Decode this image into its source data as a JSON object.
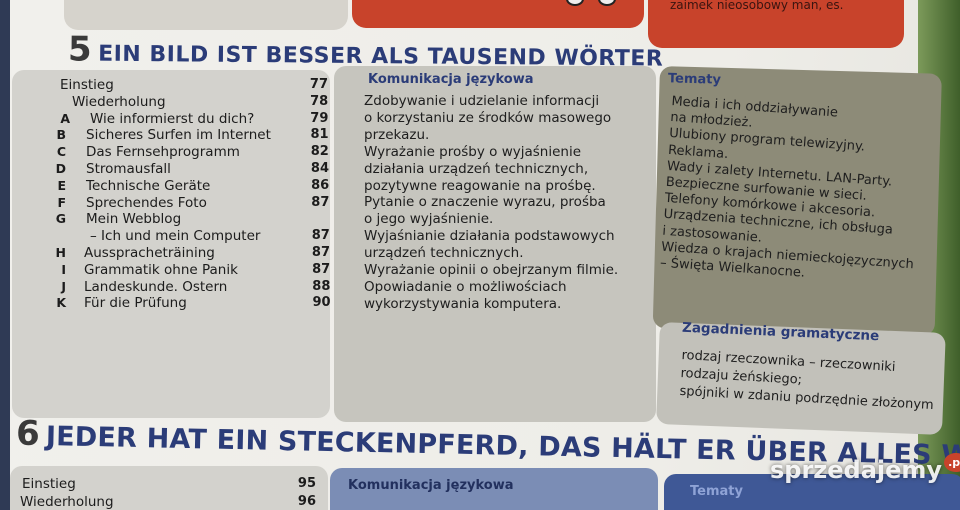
{
  "prev_unit": {
    "note": "zaimek nieosobowy man, es."
  },
  "unit5": {
    "number": "5",
    "title": "EIN BILD IST BESSER ALS TAUSEND WÖRTER",
    "toc": [
      {
        "letter": "",
        "text": "Einstieg",
        "page": "77"
      },
      {
        "letter": "",
        "text": "Wiederholung",
        "page": "78"
      },
      {
        "letter": "A",
        "text": "Wie informierst du dich?",
        "page": "79"
      },
      {
        "letter": "B",
        "text": "Sicheres Surfen im Internet",
        "page": "81"
      },
      {
        "letter": "C",
        "text": "Das Fernsehprogramm",
        "page": "82"
      },
      {
        "letter": "D",
        "text": "Stromausfall",
        "page": "84"
      },
      {
        "letter": "E",
        "text": "Technische Geräte",
        "page": "86"
      },
      {
        "letter": "F",
        "text": "Sprechendes Foto",
        "page": "87"
      },
      {
        "letter": "G",
        "text": "Mein Webblog",
        "page": ""
      },
      {
        "letter": "",
        "text": "– Ich und mein Computer",
        "page": "87"
      },
      {
        "letter": "H",
        "text": "Ausspracheträining",
        "page": "87"
      },
      {
        "letter": "I",
        "text": "Grammatik ohne Panik",
        "page": "87"
      },
      {
        "letter": "J",
        "text": "Landeskunde. Ostern",
        "page": "88"
      },
      {
        "letter": "K",
        "text": "Für die Prüfung",
        "page": "90"
      }
    ],
    "komunikacja": {
      "title": "Komunikacja językowa",
      "lines": [
        "Zdobywanie i udzielanie informacji",
        "o korzystaniu ze środków masowego",
        "przekazu.",
        "Wyrażanie prośby o wyjaśnienie",
        "działania urządzeń technicznych,",
        "pozytywne reagowanie na prośbę.",
        "Pytanie o znaczenie wyrazu, prośba",
        "o jego wyjaśnienie.",
        "Wyjaśnianie działania podstawowych",
        "urządzeń technicznych.",
        "Wyrażanie opinii o obejrzanym filmie.",
        "Opowiadanie o możliwościach",
        "wykorzystywania komputera."
      ]
    },
    "tematy": {
      "title": "Tematy",
      "lines": [
        "Media i ich oddziaływanie",
        "na młodzież.",
        "Ulubiony program telewizyjny.",
        "Reklama.",
        "Wady i zalety Internetu. LAN-Party.",
        "Bezpieczne surfowanie w sieci.",
        "Telefony komórkowe i akcesoria.",
        "Urządzenia techniczne, ich obsługa",
        "i zastosowanie.",
        "Wiedza o krajach niemieckojęzycznych",
        "– Święta Wielkanocne."
      ]
    },
    "gramatyka": {
      "title": "Zagadnienia gramatyczne",
      "lines": [
        "rodzaj rzeczownika – rzeczowniki",
        "rodzaju żeńskiego;",
        "spójniki w zdaniu podrzędnie złożonym"
      ]
    }
  },
  "unit6": {
    "number": "6",
    "title": "JEDER HAT EIN STECKENPFERD, DAS HÄLT ER ÜBER ALLES WELT",
    "toc": [
      {
        "text": "Einstieg",
        "page": "95"
      },
      {
        "text": "Wiederholung",
        "page": "96"
      }
    ],
    "komunikacja_title": "Komunikacja językowa",
    "tematy_title": "Tematy"
  },
  "watermark": {
    "text": "sprzedajemy",
    "tld": ".pl"
  },
  "colors": {
    "heading": "#2b3c78",
    "red": "#c8432b",
    "tematy_bg": "#8d8b78"
  }
}
